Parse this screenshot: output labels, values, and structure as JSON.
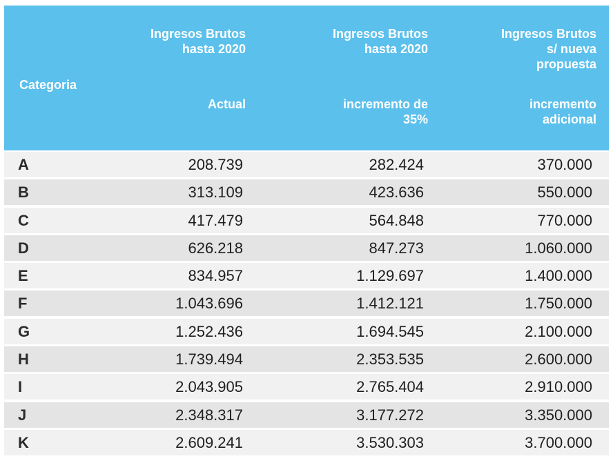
{
  "header": {
    "categoria": "Categoria",
    "col1": {
      "line1": "Ingresos Brutos",
      "line2": "hasta 2020",
      "sub": "Actual"
    },
    "col2": {
      "line1": "Ingresos Brutos",
      "line2": "hasta 2020",
      "sub1": "incremento de",
      "sub2": "35%"
    },
    "col3": {
      "line1": "Ingresos Brutos",
      "line2": "s/ nueva",
      "line3": "propuesta",
      "sub1": "incremento",
      "sub2": "adicional"
    }
  },
  "rows": [
    {
      "cat": "A",
      "v1": "208.739",
      "v2": "282.424",
      "v3": "370.000"
    },
    {
      "cat": "B",
      "v1": "313.109",
      "v2": "423.636",
      "v3": "550.000"
    },
    {
      "cat": "C",
      "v1": "417.479",
      "v2": "564.848",
      "v3": "770.000"
    },
    {
      "cat": "D",
      "v1": "626.218",
      "v2": "847.273",
      "v3": "1.060.000"
    },
    {
      "cat": "E",
      "v1": "834.957",
      "v2": "1.129.697",
      "v3": "1.400.000"
    },
    {
      "cat": "F",
      "v1": "1.043.696",
      "v2": "1.412.121",
      "v3": "1.750.000"
    },
    {
      "cat": "G",
      "v1": "1.252.436",
      "v2": "1.694.545",
      "v3": "2.100.000"
    },
    {
      "cat": "H",
      "v1": "1.739.494",
      "v2": "2.353.535",
      "v3": "2.600.000"
    },
    {
      "cat": "I",
      "v1": "2.043.905",
      "v2": "2.765.404",
      "v3": "2.910.000"
    },
    {
      "cat": "J",
      "v1": "2.348.317",
      "v2": "3.177.272",
      "v3": "3.350.000"
    },
    {
      "cat": "K",
      "v1": "2.609.241",
      "v2": "3.530.303",
      "v3": "3.700.000"
    }
  ],
  "colors": {
    "header_bg": "#5cc0ec",
    "row_light": "#f1f1f1",
    "row_dark": "#e4e4e4"
  }
}
